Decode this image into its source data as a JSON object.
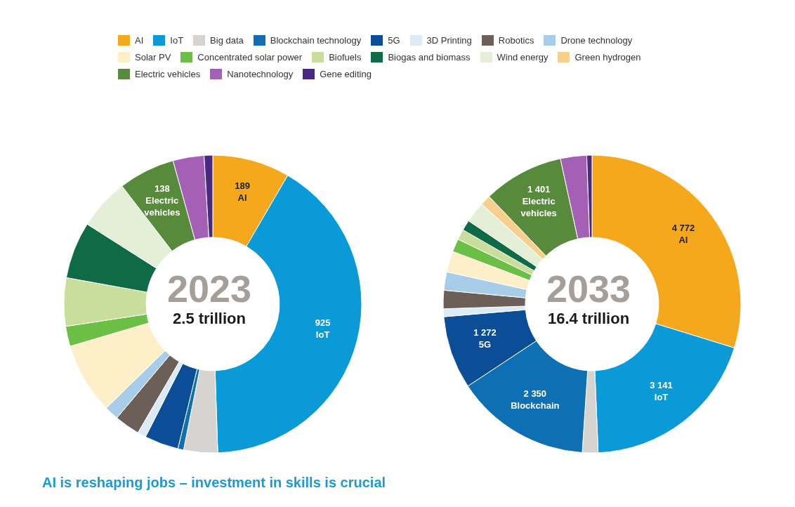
{
  "chart_data": [
    {
      "type": "donut",
      "title": "2023",
      "subtitle": "2.5 trillion",
      "legend": "top",
      "categories": [
        "AI",
        "IoT",
        "Big data",
        "Blockchain technology",
        "5G",
        "3D Printing",
        "Robotics",
        "Drone technology",
        "Solar PV",
        "Concentrated solar power",
        "Biofuels",
        "Biogas and biomass",
        "Wind energy",
        "Green hydrogen",
        "Electric vehicles",
        "Nanotechnology",
        "Gene editing"
      ],
      "values": [
        189,
        925,
        83,
        14,
        83,
        21,
        62,
        35,
        174,
        49,
        118,
        139,
        125,
        null,
        138,
        76,
        21
      ],
      "value_labels": [
        "189",
        "925",
        null,
        null,
        null,
        null,
        null,
        null,
        null,
        null,
        null,
        null,
        null,
        null,
        "138",
        null,
        null
      ],
      "colors": [
        "#f5a81c",
        "#0a9ad8",
        "#d6d3d0",
        "#0f6fb5",
        "#0b4d96",
        "#dceaf6",
        "#6b5f58",
        "#a7cde9",
        "#fdf0c8",
        "#6cbf45",
        "#c9de9a",
        "#0f6b45",
        "#e3efd6",
        "#f8d08e",
        "#588a3c",
        "#a460b4",
        "#4a2a80"
      ],
      "annotations": [
        "AI is reshaping jobs – investment in skills is crucial"
      ]
    },
    {
      "type": "donut",
      "title": "2033",
      "subtitle": "16.4 trillion",
      "categories": [
        "AI",
        "IoT",
        null,
        "Blockchain",
        "5G",
        null,
        null,
        null,
        null,
        null,
        null,
        null,
        null,
        null,
        "Electric vehicles",
        null,
        null
      ],
      "values": [
        4772,
        3141,
        274,
        2350,
        1272,
        137,
        319,
        319,
        365,
        228,
        182,
        182,
        365,
        182,
        1401,
        456,
        91
      ],
      "value_labels": [
        "4 772",
        "3 141",
        null,
        "2 350",
        "1 272",
        null,
        null,
        null,
        null,
        null,
        null,
        null,
        null,
        null,
        "1 401",
        null,
        null
      ],
      "colors": [
        "#f5a81c",
        "#0a9ad8",
        "#d6d3d0",
        "#0f6fb5",
        "#0b4d96",
        "#dceaf6",
        "#6b5f58",
        "#a7cde9",
        "#fdf0c8",
        "#6cbf45",
        "#c9de9a",
        "#0f6b45",
        "#e3efd6",
        "#f8d08e",
        "#588a3c",
        "#a460b4",
        "#4a2a80"
      ]
    }
  ]
}
